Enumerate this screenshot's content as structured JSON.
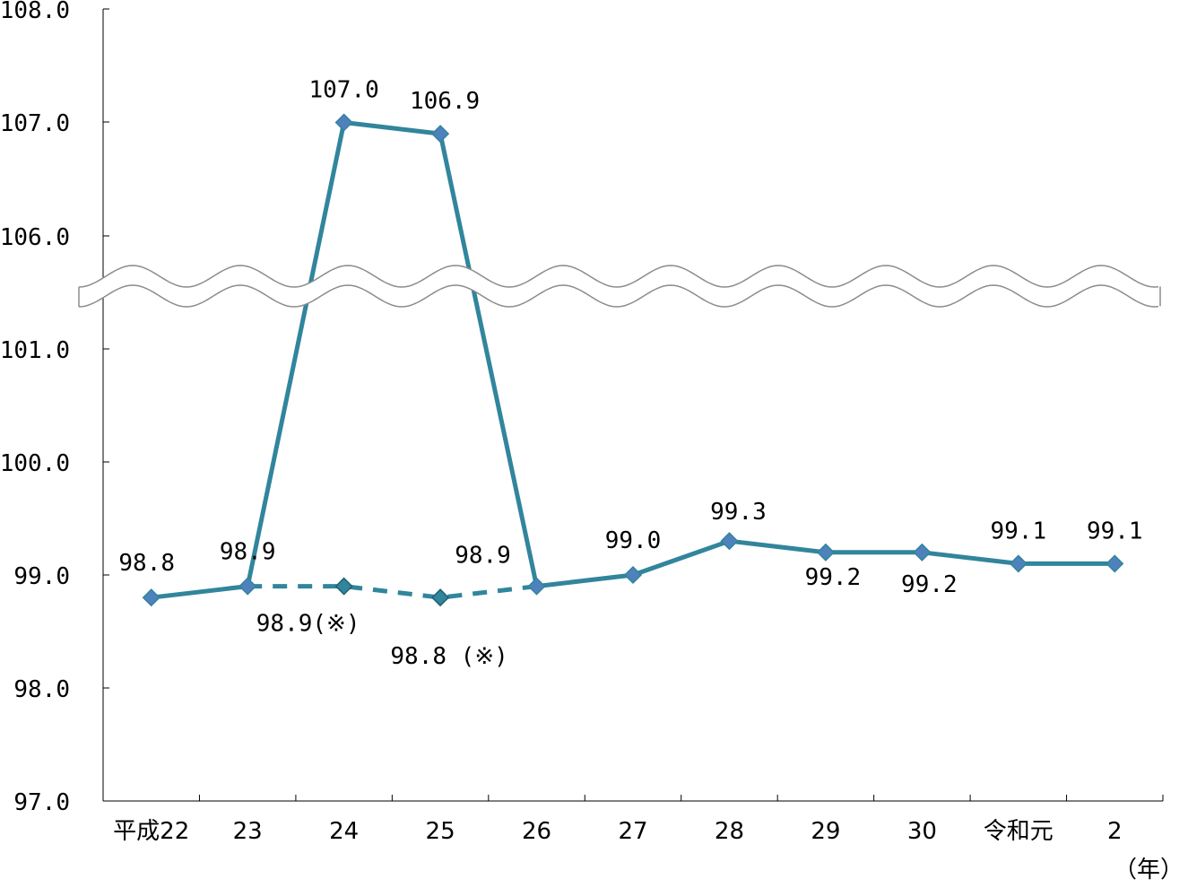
{
  "chart_data": {
    "type": "line",
    "categories": [
      "平成22",
      "23",
      "24",
      "25",
      "26",
      "27",
      "28",
      "29",
      "30",
      "令和元",
      "2"
    ],
    "x_unit": "（年）",
    "y_ticks": [
      "97.0",
      "98.0",
      "99.0",
      "100.0",
      "101.0",
      "106.0",
      "107.0",
      "108.0"
    ],
    "y_axis_break": {
      "from": 101.0,
      "to": 106.0
    },
    "ylim": [
      97.0,
      108.0
    ],
    "grid": false,
    "series": [
      {
        "line_style": "solid",
        "color": "#31859C",
        "marker_color": "#4F81BD",
        "values": [
          98.8,
          98.9,
          107.0,
          106.9,
          98.9,
          99.0,
          99.3,
          99.2,
          99.2,
          99.1,
          99.1
        ],
        "labels": [
          "98.8",
          "98.9",
          "107.0",
          "106.9",
          "98.9",
          "99.0",
          "99.3",
          "99.2",
          "99.2",
          "99.1",
          "99.1"
        ]
      },
      {
        "line_style": "dashed",
        "color": "#31859C",
        "marker_color": "#31859C",
        "points": [
          {
            "category": "23",
            "value": 98.9,
            "label": ""
          },
          {
            "category": "24",
            "value": 98.9,
            "label": "98.9(※)"
          },
          {
            "category": "25",
            "value": 98.8,
            "label": "98.8 (※)"
          },
          {
            "category": "26",
            "value": 98.9,
            "label": ""
          }
        ]
      }
    ]
  }
}
